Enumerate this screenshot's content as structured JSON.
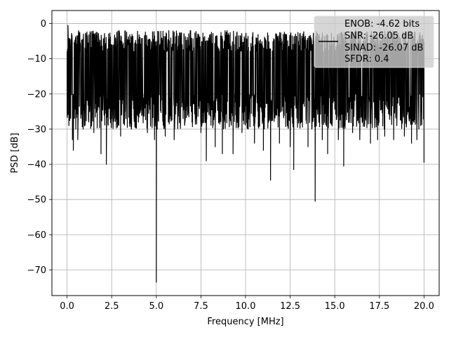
{
  "chart_data": {
    "type": "line",
    "xlabel": "Frequency [MHz]",
    "ylabel": "PSD [dB]",
    "xlim": [
      -0.85,
      20.85
    ],
    "ylim": [
      -77.3,
      3.7
    ],
    "xticks": [
      0.0,
      2.5,
      5.0,
      7.5,
      10.0,
      12.5,
      15.0,
      17.5,
      20.0
    ],
    "xtick_labels": [
      "0.0",
      "2.5",
      "5.0",
      "7.5",
      "10.0",
      "12.5",
      "15.0",
      "17.5",
      "20.0"
    ],
    "yticks": [
      0,
      -10,
      -20,
      -30,
      -40,
      -50,
      -60,
      -70
    ],
    "ytick_labels": [
      "0",
      "−10",
      "−20",
      "−30",
      "−40",
      "−50",
      "−60",
      "−70"
    ],
    "grid": true,
    "legend_position": "top-right",
    "line_color": "#000000",
    "series": [
      {
        "name": "ENOB: -4.62 bits\nSNR: -26.05 dB\nSINAD: -26.07 dB\nSFDR: 0.4",
        "noise_band": [
          -2,
          -30
        ],
        "x": [
          0.0,
          0.05,
          0.1,
          0.2,
          0.3,
          0.35,
          0.6,
          0.9,
          1.2,
          1.5,
          1.9,
          2.2,
          2.5,
          3.0,
          3.3,
          3.6,
          4.0,
          4.5,
          4.9,
          5.0,
          5.05,
          5.5,
          6.0,
          6.5,
          7.0,
          7.5,
          7.8,
          8.3,
          8.7,
          9.3,
          9.8,
          10.5,
          11.0,
          11.4,
          11.9,
          12.5,
          12.7,
          13.5,
          13.9,
          14.3,
          14.6,
          15.2,
          15.5,
          16.0,
          16.4,
          17.0,
          17.4,
          17.8,
          18.3,
          18.9,
          19.3,
          19.6,
          20.0
        ],
        "y": [
          -8,
          -0.5,
          -29,
          -26,
          -33,
          -36,
          -33,
          -30,
          -27,
          -31,
          -37,
          -40,
          -27,
          -32,
          -27,
          -30,
          -28,
          -31,
          -33,
          -73.5,
          -30,
          -32,
          -33,
          -27,
          -28,
          -31,
          -39,
          -35,
          -37,
          -37,
          -31,
          -34,
          -36,
          -44.5,
          -34,
          -35,
          -41.5,
          -35,
          -50.5,
          -33,
          -37,
          -33,
          -40.5,
          -31,
          -33,
          -34,
          -33,
          -32,
          -33,
          -32,
          -34,
          -33,
          -39.5
        ]
      }
    ],
    "legend_lines": [
      "ENOB: -4.62 bits",
      "SNR: -26.05 dB",
      "SINAD: -26.07 dB",
      "SFDR: 0.4"
    ]
  }
}
